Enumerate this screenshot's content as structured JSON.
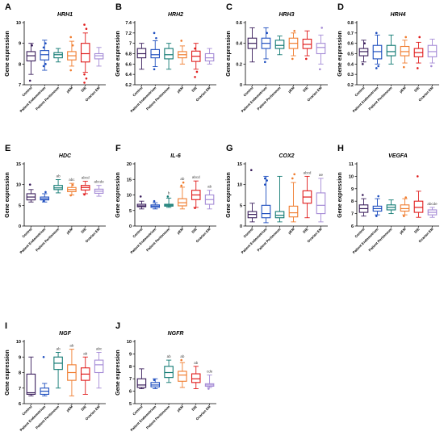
{
  "colors": [
    "#3b1f5c",
    "#1f4fbf",
    "#117a73",
    "#f07c2e",
    "#e01b1b",
    "#a58bd6"
  ],
  "ylabel": "Gene expression",
  "groups": [
    "Control",
    "Patient Endometrium",
    "Patient Peritoneum",
    "pEM",
    "DIE",
    "Ovarian EM"
  ],
  "chart_data": [
    {
      "type": "box",
      "letter": "A",
      "title": "HRH1",
      "ylim": [
        7,
        10
      ],
      "yticks": [
        7,
        8,
        9,
        10
      ],
      "series": [
        {
          "name": "Control",
          "min": 7.5,
          "q1": 8.15,
          "median": 8.4,
          "q3": 8.6,
          "max": 9.0,
          "outliers": [
            7.2,
            8.9
          ]
        },
        {
          "name": "Patient Endometrium",
          "min": 7.7,
          "q1": 8.2,
          "median": 8.45,
          "q3": 8.65,
          "max": 9.15,
          "outliers": [
            7.9,
            8.0,
            8.8,
            9.0
          ]
        },
        {
          "name": "Patient Peritoneum",
          "min": 8.1,
          "q1": 8.3,
          "median": 8.45,
          "q3": 8.55,
          "max": 8.75,
          "outliers": []
        },
        {
          "name": "pEM",
          "min": 7.9,
          "q1": 8.2,
          "median": 8.4,
          "q3": 8.6,
          "max": 9.1,
          "outliers": [
            7.7,
            8.9,
            9.3
          ]
        },
        {
          "name": "DIE",
          "min": 7.6,
          "q1": 8.1,
          "median": 8.5,
          "q3": 9.0,
          "max": 9.5,
          "outliers": [
            7.1,
            7.3,
            7.5,
            9.7,
            9.9
          ]
        },
        {
          "name": "Ovarian EM",
          "min": 7.9,
          "q1": 8.25,
          "median": 8.4,
          "q3": 8.5,
          "max": 8.8,
          "outliers": []
        }
      ],
      "sig": []
    },
    {
      "type": "box",
      "letter": "B",
      "title": "HRH2",
      "ylim": [
        6.2,
        7.4
      ],
      "yticks": [
        6.2,
        6.4,
        6.6,
        6.8,
        7.0,
        7.2,
        7.4
      ],
      "series": [
        {
          "name": "Control",
          "min": 6.5,
          "q1": 6.72,
          "median": 6.8,
          "q3": 6.9,
          "max": 7.0,
          "outliers": []
        },
        {
          "name": "Patient Endometrium",
          "min": 6.55,
          "q1": 6.72,
          "median": 6.78,
          "q3": 6.88,
          "max": 7.05,
          "outliers": [
            6.5,
            7.1,
            7.2
          ]
        },
        {
          "name": "Patient Peritoneum",
          "min": 6.5,
          "q1": 6.7,
          "median": 6.78,
          "q3": 6.9,
          "max": 7.0,
          "outliers": []
        },
        {
          "name": "pEM",
          "min": 6.6,
          "q1": 6.72,
          "median": 6.78,
          "q3": 6.84,
          "max": 6.95,
          "outliers": [
            7.05
          ]
        },
        {
          "name": "DIE",
          "min": 6.5,
          "q1": 6.65,
          "median": 6.75,
          "q3": 6.85,
          "max": 7.0,
          "outliers": [
            6.35,
            6.45,
            6.9
          ]
        },
        {
          "name": "Ovarian EM",
          "min": 6.6,
          "q1": 6.66,
          "median": 6.72,
          "q3": 6.8,
          "max": 6.9,
          "outliers": []
        }
      ],
      "sig": []
    },
    {
      "type": "box",
      "letter": "C",
      "title": "HRH3",
      "ylim": [
        0.0,
        0.6
      ],
      "yticks": [
        0.0,
        0.2,
        0.4,
        0.6
      ],
      "series": [
        {
          "name": "Control",
          "min": 0.22,
          "q1": 0.35,
          "median": 0.4,
          "q3": 0.45,
          "max": 0.55,
          "outliers": []
        },
        {
          "name": "Patient Endometrium",
          "min": 0.25,
          "q1": 0.35,
          "median": 0.4,
          "q3": 0.45,
          "max": 0.55,
          "outliers": [
            0.22,
            0.5
          ]
        },
        {
          "name": "Patient Peritoneum",
          "min": 0.29,
          "q1": 0.35,
          "median": 0.38,
          "q3": 0.43,
          "max": 0.47,
          "outliers": []
        },
        {
          "name": "pEM",
          "min": 0.28,
          "q1": 0.35,
          "median": 0.4,
          "q3": 0.45,
          "max": 0.5,
          "outliers": [
            0.25,
            0.52
          ]
        },
        {
          "name": "DIE",
          "min": 0.28,
          "q1": 0.35,
          "median": 0.39,
          "q3": 0.44,
          "max": 0.52,
          "outliers": [
            0.25
          ]
        },
        {
          "name": "Ovarian EM",
          "min": 0.2,
          "q1": 0.3,
          "median": 0.36,
          "q3": 0.4,
          "max": 0.48,
          "outliers": [
            0.15,
            0.55
          ]
        }
      ],
      "sig": []
    },
    {
      "type": "box",
      "letter": "D",
      "title": "HRH4",
      "ylim": [
        0.2,
        0.8
      ],
      "yticks": [
        0.2,
        0.3,
        0.4,
        0.5,
        0.6,
        0.7,
        0.8
      ],
      "series": [
        {
          "name": "Control",
          "min": 0.42,
          "q1": 0.48,
          "median": 0.52,
          "q3": 0.55,
          "max": 0.63,
          "outliers": [
            0.4,
            0.6
          ]
        },
        {
          "name": "Patient Endometrium",
          "min": 0.4,
          "q1": 0.45,
          "median": 0.52,
          "q3": 0.58,
          "max": 0.68,
          "outliers": [
            0.36,
            0.38,
            0.7
          ]
        },
        {
          "name": "Patient Peritoneum",
          "min": 0.4,
          "q1": 0.48,
          "median": 0.52,
          "q3": 0.58,
          "max": 0.68,
          "outliers": []
        },
        {
          "name": "pEM",
          "min": 0.41,
          "q1": 0.48,
          "median": 0.52,
          "q3": 0.57,
          "max": 0.63,
          "outliers": [
            0.37,
            0.66
          ]
        },
        {
          "name": "DIE",
          "min": 0.41,
          "q1": 0.47,
          "median": 0.51,
          "q3": 0.55,
          "max": 0.61,
          "outliers": [
            0.36,
            0.66
          ]
        },
        {
          "name": "Ovarian EM",
          "min": 0.41,
          "q1": 0.47,
          "median": 0.52,
          "q3": 0.58,
          "max": 0.64,
          "outliers": [
            0.38
          ]
        }
      ],
      "sig": []
    },
    {
      "type": "box",
      "letter": "E",
      "title": "HDC",
      "ylim": [
        0,
        15
      ],
      "yticks": [
        0,
        5,
        10,
        15
      ],
      "series": [
        {
          "name": "Control",
          "min": 5.8,
          "q1": 6.3,
          "median": 7.0,
          "q3": 7.8,
          "max": 8.8,
          "outliers": [
            10.0
          ]
        },
        {
          "name": "Patient Endometrium",
          "min": 5.8,
          "q1": 6.3,
          "median": 6.6,
          "q3": 7.0,
          "max": 7.8,
          "outliers": [
            6.0,
            8.2
          ]
        },
        {
          "name": "Patient Peritoneum",
          "min": 8.0,
          "q1": 8.8,
          "median": 9.2,
          "q3": 9.8,
          "max": 11.2,
          "outliers": []
        },
        {
          "name": "pEM",
          "min": 7.5,
          "q1": 8.3,
          "median": 8.8,
          "q3": 9.3,
          "max": 10.3,
          "outliers": [
            7.4,
            9.9
          ]
        },
        {
          "name": "DIE",
          "min": 7.8,
          "q1": 8.7,
          "median": 9.3,
          "q3": 9.8,
          "max": 10.8,
          "outliers": [
            7.6
          ]
        },
        {
          "name": "Ovarian EM",
          "min": 7.2,
          "q1": 7.9,
          "median": 8.4,
          "q3": 8.9,
          "max": 9.8,
          "outliers": []
        }
      ],
      "sig": [
        {
          "group": 2,
          "label": "ab"
        },
        {
          "group": 3,
          "label": "abc"
        },
        {
          "group": 4,
          "label": "abcd"
        },
        {
          "group": 5,
          "label": "abcde"
        }
      ]
    },
    {
      "type": "box",
      "letter": "F",
      "title": "IL-6",
      "ylim": [
        0,
        20
      ],
      "yticks": [
        0,
        5,
        10,
        15,
        20
      ],
      "series": [
        {
          "name": "Control",
          "min": 5.5,
          "q1": 6.2,
          "median": 6.5,
          "q3": 7.0,
          "max": 8.0,
          "outliers": [
            9.5
          ]
        },
        {
          "name": "Patient Endometrium",
          "min": 5.5,
          "q1": 6.0,
          "median": 6.4,
          "q3": 6.8,
          "max": 7.5,
          "outliers": [
            8.0
          ]
        },
        {
          "name": "Patient Peritoneum",
          "min": 6.0,
          "q1": 6.4,
          "median": 6.7,
          "q3": 7.0,
          "max": 9.0,
          "outliers": [
            9.5
          ]
        },
        {
          "name": "pEM",
          "min": 5.5,
          "q1": 6.5,
          "median": 7.5,
          "q3": 8.8,
          "max": 12.5,
          "outliers": [
            13.0,
            14.0
          ]
        },
        {
          "name": "DIE",
          "min": 6.0,
          "q1": 8.5,
          "median": 10.0,
          "q3": 11.5,
          "max": 14.5,
          "outliers": [
            5.8
          ]
        },
        {
          "name": "Ovarian EM",
          "min": 5.5,
          "q1": 7.0,
          "median": 8.5,
          "q3": 10.0,
          "max": 11.5,
          "outliers": []
        }
      ],
      "sig": [
        {
          "group": 2,
          "label": "b"
        },
        {
          "group": 3,
          "label": "ab"
        },
        {
          "group": 4,
          "label": "abcd"
        },
        {
          "group": 5,
          "label": "ab"
        }
      ]
    },
    {
      "type": "box",
      "letter": "G",
      "title": "COX2",
      "ylim": [
        0,
        15
      ],
      "yticks": [
        0,
        5,
        10,
        15
      ],
      "series": [
        {
          "name": "Control",
          "min": 1.0,
          "q1": 2.0,
          "median": 2.8,
          "q3": 3.5,
          "max": 5.5,
          "outliers": [
            13.5
          ]
        },
        {
          "name": "Patient Endometrium",
          "min": 0.8,
          "q1": 2.0,
          "median": 3.0,
          "q3": 5.0,
          "max": 12.0,
          "outliers": [
            10.0,
            11.0,
            11.5
          ]
        },
        {
          "name": "Patient Peritoneum",
          "min": 1.0,
          "q1": 2.0,
          "median": 2.6,
          "q3": 3.5,
          "max": 12.0,
          "outliers": []
        },
        {
          "name": "pEM",
          "min": 1.0,
          "q1": 2.2,
          "median": 3.2,
          "q3": 4.8,
          "max": 10.5,
          "outliers": [
            11.5,
            12.5
          ]
        },
        {
          "name": "DIE",
          "min": 2.0,
          "q1": 5.5,
          "median": 7.0,
          "q3": 8.5,
          "max": 12.0,
          "outliers": []
        },
        {
          "name": "Ovarian EM",
          "min": 1.0,
          "q1": 3.0,
          "median": 5.0,
          "q3": 8.0,
          "max": 11.5,
          "outliers": []
        }
      ],
      "sig": [
        {
          "group": 4,
          "label": "abcd"
        },
        {
          "group": 5,
          "label": "ae"
        }
      ]
    },
    {
      "type": "box",
      "letter": "H",
      "title": "VEGFA",
      "ylim": [
        6,
        11
      ],
      "yticks": [
        6,
        7,
        8,
        9,
        10,
        11
      ],
      "series": [
        {
          "name": "Control",
          "min": 6.8,
          "q1": 7.1,
          "median": 7.4,
          "q3": 7.7,
          "max": 8.2,
          "outliers": [
            8.5
          ]
        },
        {
          "name": "Patient Endometrium",
          "min": 6.9,
          "q1": 7.2,
          "median": 7.4,
          "q3": 7.6,
          "max": 8.2,
          "outliers": [
            6.8,
            8.4
          ]
        },
        {
          "name": "Patient Peritoneum",
          "min": 7.0,
          "q1": 7.3,
          "median": 7.5,
          "q3": 7.7,
          "max": 8.1,
          "outliers": []
        },
        {
          "name": "pEM",
          "min": 6.9,
          "q1": 7.2,
          "median": 7.4,
          "q3": 7.7,
          "max": 8.2,
          "outliers": [
            6.8,
            8.3
          ]
        },
        {
          "name": "DIE",
          "min": 6.7,
          "q1": 7.1,
          "median": 7.5,
          "q3": 8.0,
          "max": 8.8,
          "outliers": [
            10.0
          ]
        },
        {
          "name": "Ovarian EM",
          "min": 6.7,
          "q1": 6.9,
          "median": 7.1,
          "q3": 7.3,
          "max": 7.5,
          "outliers": []
        }
      ],
      "sig": [
        {
          "group": 5,
          "label": "abcde"
        }
      ]
    },
    {
      "type": "box",
      "letter": "I",
      "title": "NGF",
      "ylim": [
        6,
        10
      ],
      "yticks": [
        6,
        7,
        8,
        9,
        10
      ],
      "series": [
        {
          "name": "Control",
          "min": 6.5,
          "q1": 6.6,
          "median": 6.7,
          "q3": 7.9,
          "max": 9.0,
          "outliers": []
        },
        {
          "name": "Patient Endometrium",
          "min": 6.5,
          "q1": 6.6,
          "median": 6.8,
          "q3": 7.0,
          "max": 7.3,
          "outliers": [
            9.0
          ]
        },
        {
          "name": "Patient Peritoneum",
          "min": 7.0,
          "q1": 8.2,
          "median": 8.6,
          "q3": 9.0,
          "max": 9.3,
          "outliers": []
        },
        {
          "name": "pEM",
          "min": 6.5,
          "q1": 7.5,
          "median": 8.0,
          "q3": 8.5,
          "max": 9.5,
          "outliers": []
        },
        {
          "name": "DIE",
          "min": 6.6,
          "q1": 7.5,
          "median": 7.9,
          "q3": 8.3,
          "max": 9.0,
          "outliers": []
        },
        {
          "name": "Ovarian EM",
          "min": 7.0,
          "q1": 8.0,
          "median": 8.5,
          "q3": 8.8,
          "max": 9.3,
          "outliers": []
        }
      ],
      "sig": [
        {
          "group": 2,
          "label": "ab"
        },
        {
          "group": 3,
          "label": "ab"
        },
        {
          "group": 4,
          "label": "ab"
        },
        {
          "group": 5,
          "label": "abc"
        }
      ]
    },
    {
      "type": "box",
      "letter": "J",
      "title": "NGFR",
      "ylim": [
        5,
        10
      ],
      "yticks": [
        5,
        6,
        7,
        8,
        9,
        10
      ],
      "series": [
        {
          "name": "Control",
          "min": 6.2,
          "q1": 6.3,
          "median": 6.5,
          "q3": 7.0,
          "max": 7.8,
          "outliers": []
        },
        {
          "name": "Patient Endometrium",
          "min": 6.2,
          "q1": 6.35,
          "median": 6.5,
          "q3": 6.7,
          "max": 7.0,
          "outliers": [
            6.9
          ]
        },
        {
          "name": "Patient Peritoneum",
          "min": 6.7,
          "q1": 7.1,
          "median": 7.5,
          "q3": 8.0,
          "max": 8.5,
          "outliers": []
        },
        {
          "name": "pEM",
          "min": 6.3,
          "q1": 6.8,
          "median": 7.3,
          "q3": 7.6,
          "max": 8.3,
          "outliers": [
            8.5
          ]
        },
        {
          "name": "DIE",
          "min": 6.2,
          "q1": 6.7,
          "median": 7.0,
          "q3": 7.4,
          "max": 8.0,
          "outliers": []
        },
        {
          "name": "Ovarian EM",
          "min": 6.3,
          "q1": 6.4,
          "median": 6.5,
          "q3": 6.6,
          "max": 7.3,
          "outliers": [
            6.2
          ]
        }
      ],
      "sig": [
        {
          "group": 2,
          "label": "ab"
        },
        {
          "group": 3,
          "label": "ab"
        },
        {
          "group": 4,
          "label": "ab"
        },
        {
          "group": 5,
          "label": "cde"
        }
      ]
    }
  ]
}
